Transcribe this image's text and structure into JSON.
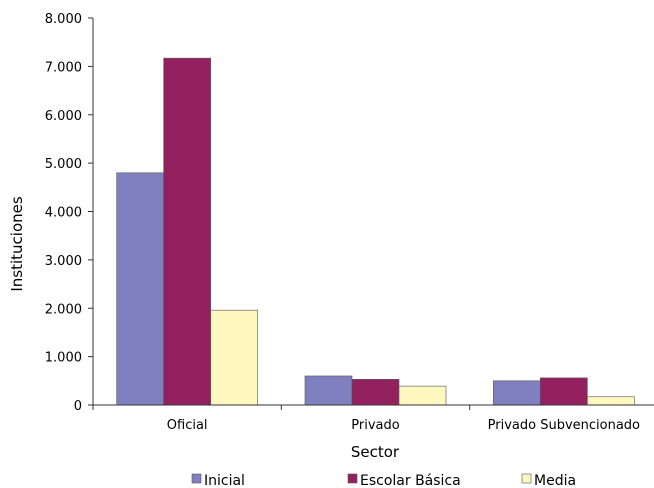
{
  "chart_data": {
    "type": "bar",
    "xlabel": "Sector",
    "ylabel": "Instituciones",
    "categories": [
      "Oficial",
      "Privado",
      "Privado Subvencionado"
    ],
    "series": [
      {
        "name": "Inicial",
        "color": "#8080c0",
        "values": [
          4800,
          600,
          500
        ]
      },
      {
        "name": "Escolar Básica",
        "color": "#93205f",
        "values": [
          7170,
          530,
          560
        ]
      },
      {
        "name": "Media",
        "color": "#fff8c0",
        "values": [
          1960,
          390,
          170
        ]
      }
    ],
    "ylim": [
      0,
      8000
    ],
    "yticks": [
      0,
      1000,
      2000,
      3000,
      4000,
      5000,
      6000,
      7000,
      8000
    ],
    "ytick_labels": [
      "0",
      "1.000",
      "2.000",
      "3.000",
      "4.000",
      "5.000",
      "6.000",
      "7.000",
      "8.000"
    ],
    "grid": false,
    "legend_position": "bottom"
  }
}
